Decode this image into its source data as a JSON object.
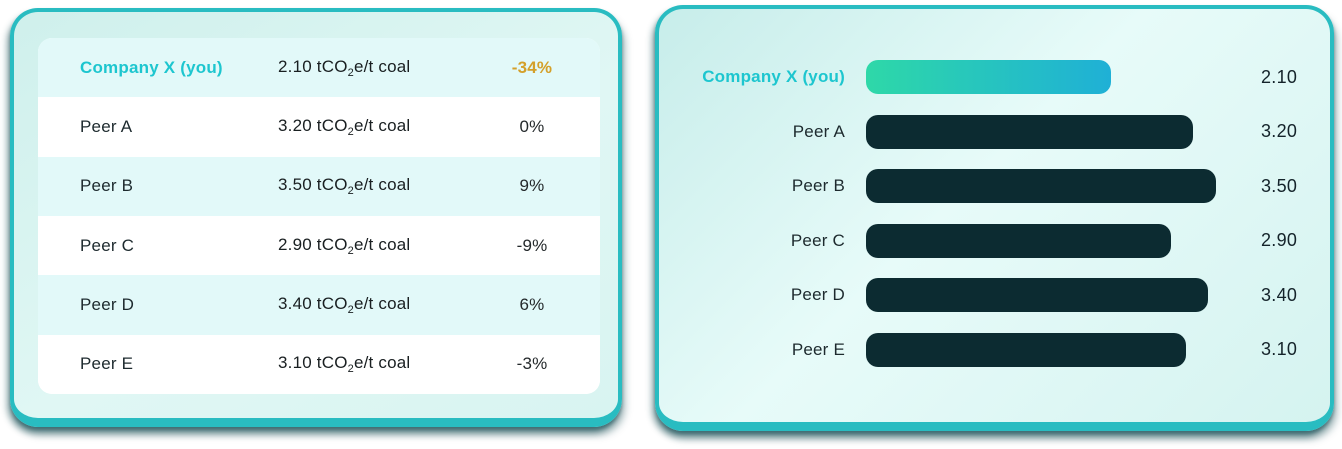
{
  "colors": {
    "accent_teal": "#1dc6cf",
    "delta_gold": "#d4a02a",
    "bar_dark": "#0c2b31",
    "bar_grad_start": "#2ed8a8",
    "bar_grad_end": "#1fb0d6",
    "panel_border": "#29bcc1",
    "row_cyan": "#e2f9f9",
    "text_dark": "#1d2a2e"
  },
  "table_panel": {
    "rows": [
      {
        "name": "Company X (you)",
        "value": "2.10 tCO₂e/t coal",
        "delta": "-34%"
      },
      {
        "name": "Peer A",
        "value": "3.20 tCO₂e/t coal",
        "delta": "0%"
      },
      {
        "name": "Peer B",
        "value": "3.50 tCO₂e/t coal",
        "delta": "9%"
      },
      {
        "name": "Peer C",
        "value": "2.90 tCO₂e/t coal",
        "delta": "-9%"
      },
      {
        "name": "Peer D",
        "value": "3.40 tCO₂e/t coal",
        "delta": "6%"
      },
      {
        "name": "Peer E",
        "value": "3.10 tCO₂e/t coal",
        "delta": "-3%"
      }
    ]
  },
  "chart_panel": {
    "rows": [
      {
        "label": "Company X (you)",
        "value": 2.1,
        "value_label": "2.10"
      },
      {
        "label": "Peer A",
        "value": 3.2,
        "value_label": "3.20"
      },
      {
        "label": "Peer B",
        "value": 3.5,
        "value_label": "3.50"
      },
      {
        "label": "Peer C",
        "value": 2.9,
        "value_label": "2.90"
      },
      {
        "label": "Peer D",
        "value": 3.4,
        "value_label": "3.40"
      },
      {
        "label": "Peer E",
        "value": 3.1,
        "value_label": "3.10"
      }
    ]
  },
  "chart_data": {
    "type": "bar",
    "orientation": "horizontal",
    "categories": [
      "Company X (you)",
      "Peer A",
      "Peer B",
      "Peer C",
      "Peer D",
      "Peer E"
    ],
    "values": [
      2.1,
      3.2,
      3.5,
      2.9,
      3.4,
      3.1
    ],
    "value_labels": [
      "2.10",
      "3.20",
      "3.50",
      "2.90",
      "3.40",
      "3.10"
    ],
    "unit": "tCO₂e/t coal",
    "deltas": [
      "-34%",
      "0%",
      "9%",
      "-9%",
      "6%",
      "-3%"
    ],
    "highlight_category": "Company X (you)",
    "xlim": [
      0,
      3.5
    ],
    "grid": false,
    "legend": false,
    "title": "",
    "xlabel": "",
    "ylabel": ""
  }
}
